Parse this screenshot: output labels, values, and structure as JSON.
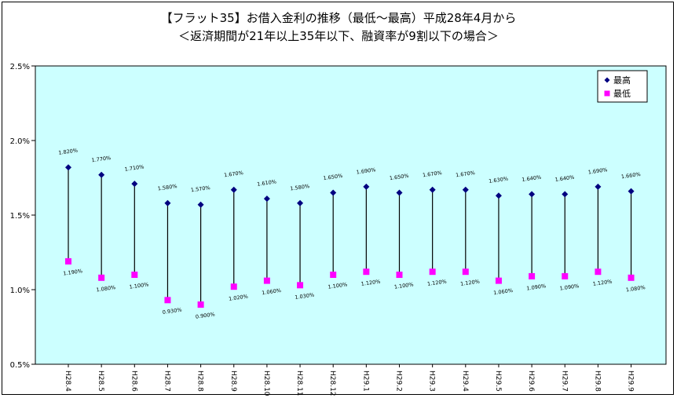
{
  "chart_data": {
    "type": "scatter",
    "title": "【フラット35】お借入金利の推移（最低～最高）平成28年4月から",
    "subtitle": "＜返済期間が21年以上35年以下、融資率が9割以下の場合＞",
    "categories": [
      "H28.4",
      "H28.5",
      "H28.6",
      "H28.7",
      "H28.8",
      "H28.9",
      "H28.10",
      "H28.11",
      "H28.12",
      "H29.1",
      "H29.2",
      "H29.3",
      "H29.4",
      "H29.5",
      "H29.6",
      "H29.7",
      "H29.8",
      "H29.9"
    ],
    "series": [
      {
        "name": "最高",
        "values": [
          1.82,
          1.77,
          1.71,
          1.58,
          1.57,
          1.67,
          1.61,
          1.58,
          1.65,
          1.69,
          1.65,
          1.67,
          1.67,
          1.63,
          1.64,
          1.64,
          1.69,
          1.66
        ],
        "labels": [
          "1.820%",
          "1.770%",
          "1.710%",
          "1.580%",
          "1.570%",
          "1.670%",
          "1.610%",
          "1.580%",
          "1.650%",
          "1.690%",
          "1.650%",
          "1.670%",
          "1.670%",
          "1.630%",
          "1.640%",
          "1.640%",
          "1.690%",
          "1.660%"
        ],
        "color": "#000080",
        "marker": "diamond"
      },
      {
        "name": "最低",
        "values": [
          1.19,
          1.08,
          1.1,
          0.93,
          0.9,
          1.02,
          1.06,
          1.03,
          1.1,
          1.12,
          1.1,
          1.12,
          1.12,
          1.06,
          1.09,
          1.09,
          1.12,
          1.08
        ],
        "labels": [
          "1.190%",
          "1.080%",
          "1.100%",
          "0.930%",
          "0.900%",
          "1.020%",
          "1.060%",
          "1.030%",
          "1.100%",
          "1.120%",
          "1.100%",
          "1.120%",
          "1.120%",
          "1.060%",
          "1.090%",
          "1.090%",
          "1.120%",
          "1.080%"
        ],
        "color": "#FF00FF",
        "marker": "square"
      }
    ],
    "ylim": [
      0.5,
      2.5
    ],
    "yticks": [
      0.5,
      1.0,
      1.5,
      2.0,
      2.5
    ],
    "ytick_labels": [
      "0.5%",
      "1.0%",
      "1.5%",
      "2.0%",
      "2.5%"
    ],
    "grid": false,
    "legend": "top-right",
    "plot_background": "#CCFFFF"
  }
}
